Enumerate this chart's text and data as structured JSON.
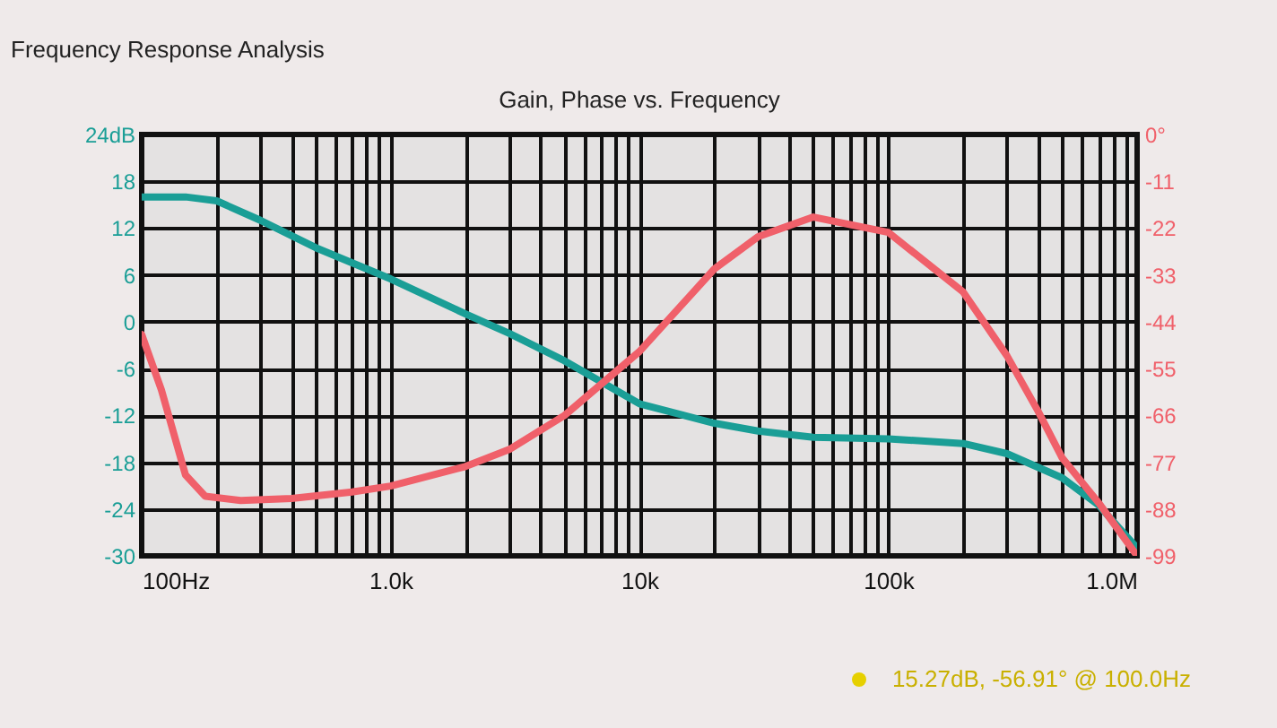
{
  "chart_data": {
    "type": "line",
    "title": "Frequency Response Analysis",
    "subtitle": "Gain, Phase vs. Frequency",
    "x": [
      100,
      150,
      200,
      300,
      500,
      1000,
      2000,
      3000,
      5000,
      10000,
      20000,
      30000,
      50000,
      100000,
      200000,
      300000,
      500000,
      700000,
      1000000
    ],
    "series": [
      {
        "color": "#1a9e96",
        "values": [
          16,
          16,
          15.5,
          13,
          9.5,
          5.5,
          1,
          -1.5,
          -5,
          -10.5,
          -13,
          -14,
          -14.8,
          -15,
          -15.6,
          -16.9,
          -20,
          -23.5,
          -29
        ]
      },
      {
        "color": "#f0606a",
        "axis": "y2",
        "x": [
          100,
          120,
          150,
          180,
          250,
          400,
          700,
          1000,
          2000,
          3000,
          5000,
          10000,
          20000,
          30000,
          50000,
          100000,
          200000,
          300000,
          400000,
          500000,
          700000,
          1000000
        ],
        "values": [
          -47,
          -60,
          -80,
          -85,
          -86,
          -85.5,
          -84,
          -82.6,
          -78,
          -74,
          -66,
          -51,
          -31.6,
          -24,
          -19.4,
          -23,
          -37,
          -52,
          -65,
          -76,
          -86.5,
          -99
        ]
      }
    ],
    "xlim": [
      100,
      1000000
    ],
    "log": "x",
    "xticks": [
      {
        "value": 100,
        "label": "100Hz"
      },
      {
        "value": 200,
        "label": null
      },
      {
        "value": 300,
        "label": null
      },
      {
        "value": 400,
        "label": null
      },
      {
        "value": 500,
        "label": null
      },
      {
        "value": 600,
        "label": null
      },
      {
        "value": 700,
        "label": null
      },
      {
        "value": 800,
        "label": null
      },
      {
        "value": 900,
        "label": null
      },
      {
        "value": 1000,
        "label": "1.0k"
      },
      {
        "value": 2000,
        "label": null
      },
      {
        "value": 3000,
        "label": null
      },
      {
        "value": 4000,
        "label": null
      },
      {
        "value": 5000,
        "label": null
      },
      {
        "value": 6000,
        "label": null
      },
      {
        "value": 7000,
        "label": null
      },
      {
        "value": 8000,
        "label": null
      },
      {
        "value": 9000,
        "label": null
      },
      {
        "value": 10000,
        "label": "10k"
      },
      {
        "value": 20000,
        "label": null
      },
      {
        "value": 30000,
        "label": null
      },
      {
        "value": 40000,
        "label": null
      },
      {
        "value": 50000,
        "label": null
      },
      {
        "value": 60000,
        "label": null
      },
      {
        "value": 70000,
        "label": null
      },
      {
        "value": 80000,
        "label": null
      },
      {
        "value": 90000,
        "label": null
      },
      {
        "value": 100000,
        "label": "100k"
      },
      {
        "value": 200000,
        "label": null
      },
      {
        "value": 300000,
        "label": null
      },
      {
        "value": 400000,
        "label": null
      },
      {
        "value": 500000,
        "label": null
      },
      {
        "value": 600000,
        "label": null
      },
      {
        "value": 700000,
        "label": null
      },
      {
        "value": 800000,
        "label": null
      },
      {
        "value": 900000,
        "label": null
      },
      {
        "value": 1000000,
        "label": "1.0M"
      }
    ],
    "ylim": [
      -30,
      24
    ],
    "yticks": [
      {
        "value": 24,
        "label": "24dB"
      },
      18,
      12,
      6,
      0,
      -6,
      -12,
      -18,
      -24,
      -30
    ],
    "y2lim": [
      -99,
      0
    ],
    "y2ticks": [
      {
        "value": 0,
        "label": "0°"
      },
      -11,
      -22,
      -33,
      -44,
      -55,
      -66,
      -77,
      -88,
      -99
    ],
    "grid": true,
    "annotations": [
      "15.27dB, -56.91° @ 100.0Hz"
    ]
  }
}
